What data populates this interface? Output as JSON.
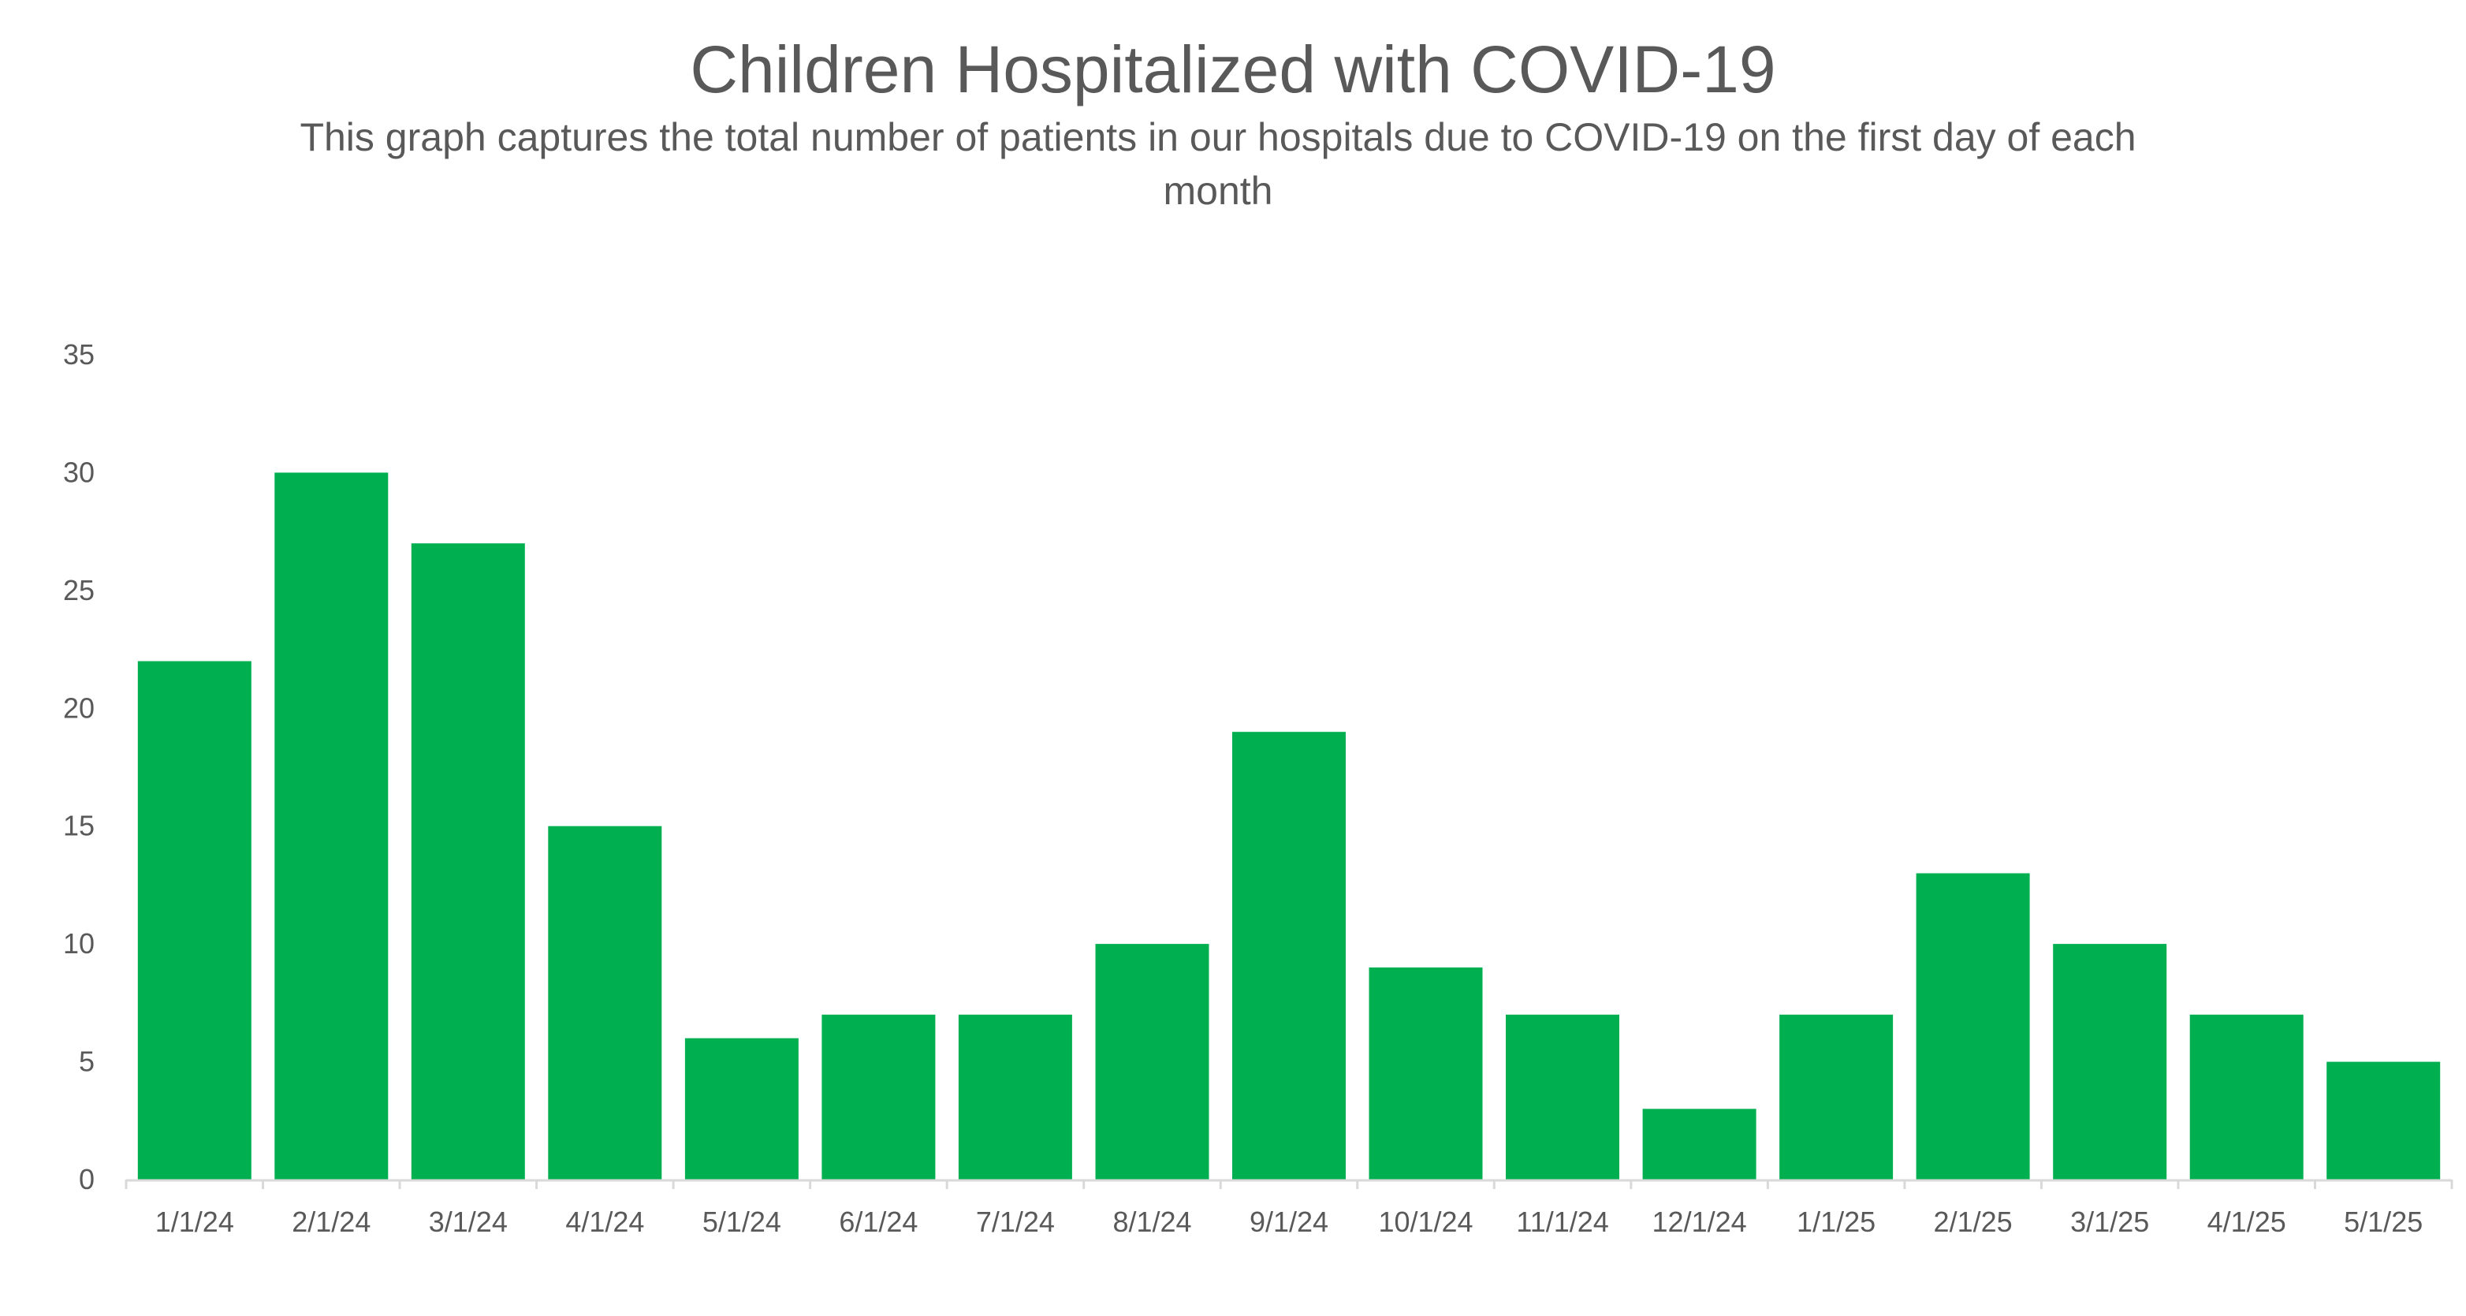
{
  "chart_data": {
    "type": "bar",
    "title": "Children Hospitalized with COVID-19",
    "subtitle": "This graph captures the total number of patients in our hospitals due to COVID-19 on the first day of each month",
    "categories": [
      "1/1/24",
      "2/1/24",
      "3/1/24",
      "4/1/24",
      "5/1/24",
      "6/1/24",
      "7/1/24",
      "8/1/24",
      "9/1/24",
      "10/1/24",
      "11/1/24",
      "12/1/24",
      "1/1/25",
      "2/1/25",
      "3/1/25",
      "4/1/25",
      "5/1/25"
    ],
    "values": [
      22,
      30,
      27,
      15,
      6,
      7,
      7,
      10,
      19,
      9,
      7,
      3,
      7,
      13,
      10,
      7,
      5
    ],
    "yticks": [
      0,
      5,
      10,
      15,
      20,
      25,
      30,
      35
    ],
    "ylim": [
      0,
      35
    ],
    "xlabel": "",
    "ylabel": "",
    "grid": false,
    "legend": "none",
    "colors": {
      "bar": "#00B050",
      "text": "#595959",
      "axis": "#D9D9D9"
    }
  }
}
